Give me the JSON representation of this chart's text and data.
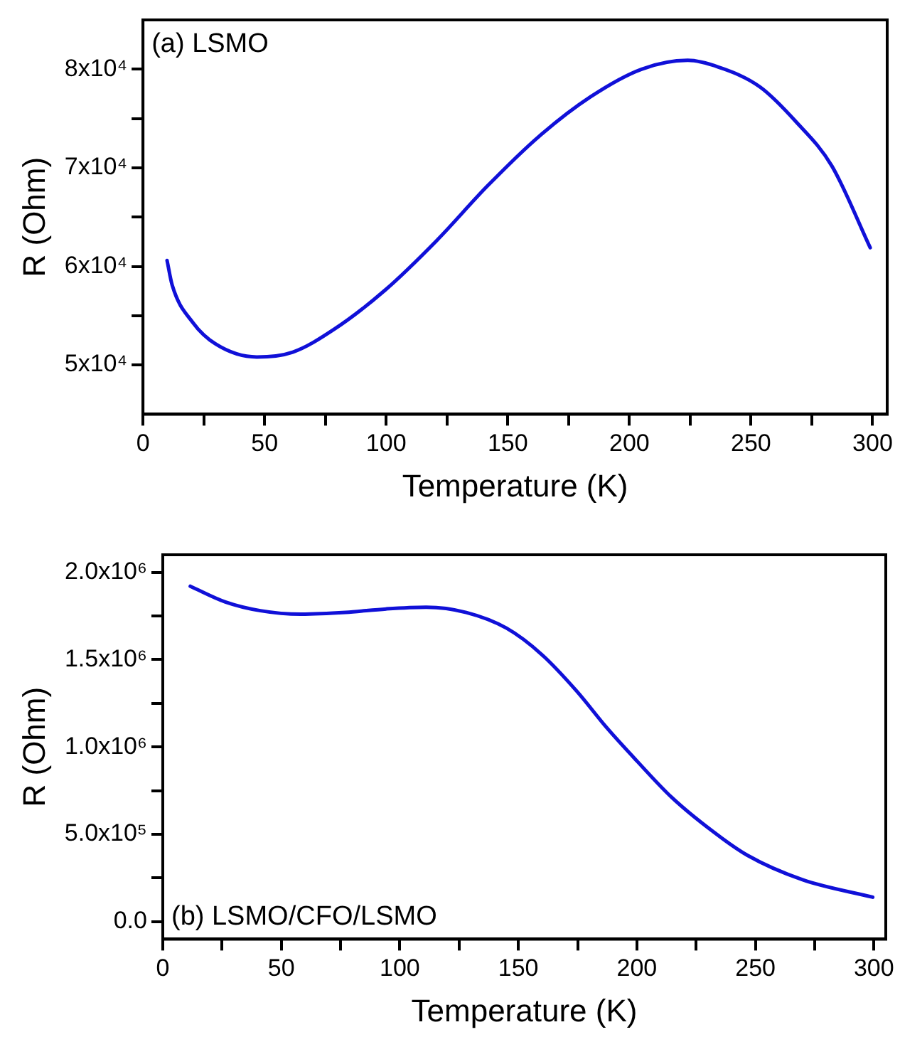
{
  "chart_data": [
    {
      "type": "line",
      "xlabel": "Temperature (K)",
      "ylabel": "R (Ohm)",
      "annotations": [
        "(a) LSMO"
      ],
      "grid": false,
      "legend": false,
      "marker": "none",
      "line_style": "solid",
      "xlim": [
        0,
        306
      ],
      "ylim": [
        45000,
        85000
      ],
      "xticks": [
        0,
        {
          "value": 25,
          "label": null
        },
        50,
        {
          "value": 75,
          "label": null
        },
        100,
        {
          "value": 125,
          "label": null
        },
        150,
        {
          "value": 175,
          "label": null
        },
        200,
        {
          "value": 225,
          "label": null
        },
        250,
        {
          "value": 275,
          "label": null
        },
        300
      ],
      "yticks": [
        {
          "value": 50000,
          "label": "5x10⁴"
        },
        {
          "value": 55000,
          "label": null
        },
        {
          "value": 60000,
          "label": "6x10⁴"
        },
        {
          "value": 65000,
          "label": null
        },
        {
          "value": 70000,
          "label": "7x10⁴"
        },
        {
          "value": 75000,
          "label": null
        },
        {
          "value": 80000,
          "label": "8x10⁴"
        }
      ],
      "series": [
        {
          "color": "#1010d8",
          "x": [
            9.9,
            12,
            20.5,
            30,
            46.8,
            61.6,
            78.5,
            99.6,
            120.7,
            141.8,
            162.9,
            184,
            205,
            224,
            236.8,
            253.7,
            268.4,
            283.2,
            299
          ],
          "values": [
            60600,
            58100,
            54300,
            52100,
            50800,
            51300,
            53600,
            57600,
            62600,
            68200,
            73200,
            77200,
            80000,
            80900,
            80200,
            78200,
            74700,
            70200,
            61900
          ]
        }
      ]
    },
    {
      "type": "line",
      "xlabel": "Temperature (K)",
      "ylabel": "R (Ohm)",
      "annotations": [
        "(b) LSMO/CFO/LSMO"
      ],
      "grid": false,
      "legend": false,
      "marker": "none",
      "line_style": "solid",
      "xlim": [
        0,
        305
      ],
      "ylim": [
        -100000,
        2100000
      ],
      "xticks": [
        0,
        {
          "value": 25,
          "label": null
        },
        50,
        {
          "value": 75,
          "label": null
        },
        100,
        {
          "value": 125,
          "label": null
        },
        150,
        {
          "value": 175,
          "label": null
        },
        200,
        {
          "value": 225,
          "label": null
        },
        250,
        {
          "value": 275,
          "label": null
        },
        300
      ],
      "yticks": [
        {
          "value": 0,
          "label": "0.0"
        },
        {
          "value": 250000,
          "label": null
        },
        {
          "value": 500000,
          "label": "5.0x10⁵"
        },
        {
          "value": 750000,
          "label": null
        },
        {
          "value": 1000000,
          "label": "1.0x10⁶"
        },
        {
          "value": 1250000,
          "label": null
        },
        {
          "value": 1500000,
          "label": "1.5x10⁶"
        },
        {
          "value": 1750000,
          "label": null
        },
        {
          "value": 2000000,
          "label": "2.0x10⁶"
        }
      ],
      "series": [
        {
          "color": "#1010d8",
          "x": [
            11.6,
            26.4,
            41.2,
            58.2,
            77.2,
            94.2,
            111.1,
            128,
            145,
            159.8,
            174.6,
            187.3,
            200,
            214.8,
            231.7,
            246.6,
            269.9,
            299.5
          ],
          "values": [
            1920000,
            1830000,
            1780000,
            1760000,
            1770000,
            1790000,
            1800000,
            1770000,
            1680000,
            1530000,
            1320000,
            1110000,
            920000,
            710000,
            520000,
            380000,
            240000,
            140000
          ]
        }
      ]
    }
  ]
}
